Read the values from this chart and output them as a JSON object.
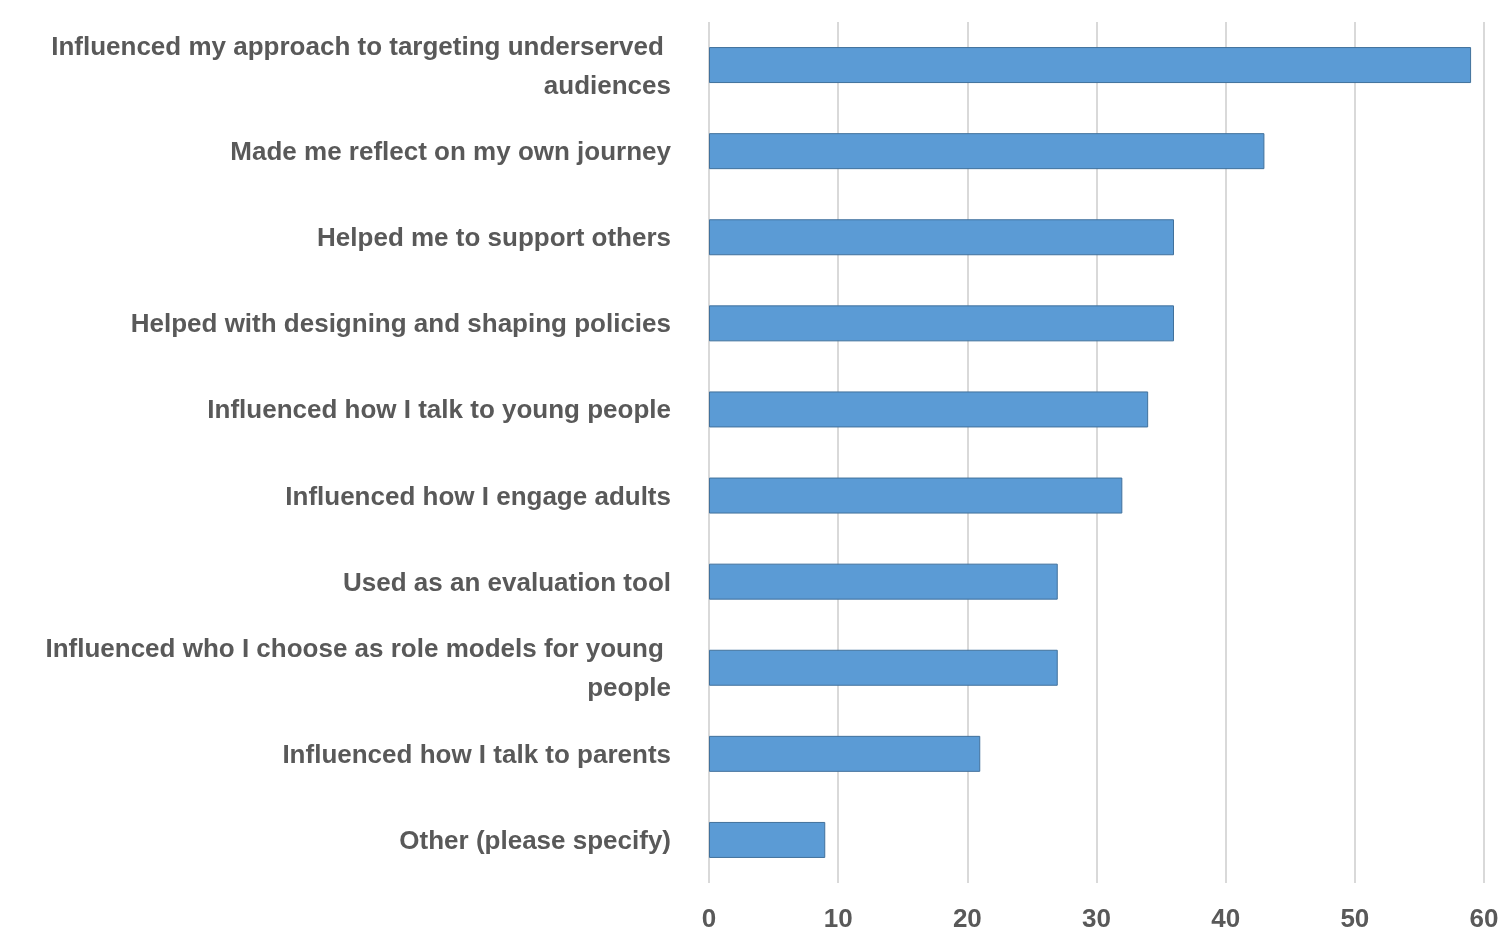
{
  "chart_data": {
    "type": "bar",
    "orientation": "horizontal",
    "categories": [
      "Influenced my approach to targeting underserved audiences",
      "Made me reflect on my own journey",
      "Helped me to support others",
      "Helped with designing and shaping policies",
      "Influenced how I talk to young people",
      "Influenced how I engage adults",
      "Used as an evaluation tool",
      "Influenced who I choose as role models for young people",
      "Influenced how I talk to parents",
      "Other (please specify)"
    ],
    "values": [
      59,
      43,
      36,
      36,
      34,
      32,
      27,
      27,
      21,
      9
    ],
    "color": "#5b9bd5",
    "xlim": [
      0,
      60
    ],
    "xticks": [
      0,
      10,
      20,
      30,
      40,
      50,
      60
    ],
    "grid": "x"
  }
}
